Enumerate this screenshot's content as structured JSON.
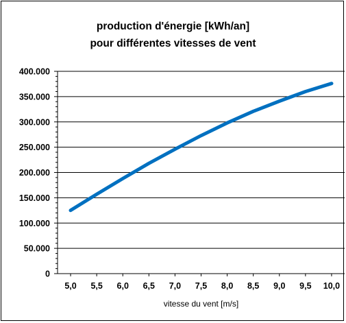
{
  "chart_data": {
    "type": "line",
    "title": [
      "production d'énergie [kWh/an]",
      "pour différentes vitesses de vent"
    ],
    "xlabel": "vitesse du vent [m/s]",
    "ylabel": "",
    "x": [
      5.0,
      5.5,
      6.0,
      6.5,
      7.0,
      7.5,
      8.0,
      8.5,
      9.0,
      9.5,
      10.0
    ],
    "x_tick_labels": [
      "5,0",
      "5,5",
      "6,0",
      "6,5",
      "7,0",
      "7,5",
      "8,0",
      "8,5",
      "9,0",
      "9,5",
      "10,0"
    ],
    "y_ticks": [
      0,
      50000,
      100000,
      150000,
      200000,
      250000,
      300000,
      350000,
      400000
    ],
    "y_tick_labels": [
      "0",
      "50.000",
      "100.000",
      "150.000",
      "200.000",
      "250.000",
      "300.000",
      "350.000",
      "400.000"
    ],
    "ylim": [
      0,
      400000
    ],
    "xlim": [
      4.75,
      10.25
    ],
    "grid": "horizontal",
    "legend": "none",
    "series": [
      {
        "values": [
          125000,
          157000,
          188000,
          218000,
          246000,
          273000,
          298000,
          321000,
          341000,
          360000,
          376000
        ],
        "color": "#0070C0"
      }
    ]
  }
}
